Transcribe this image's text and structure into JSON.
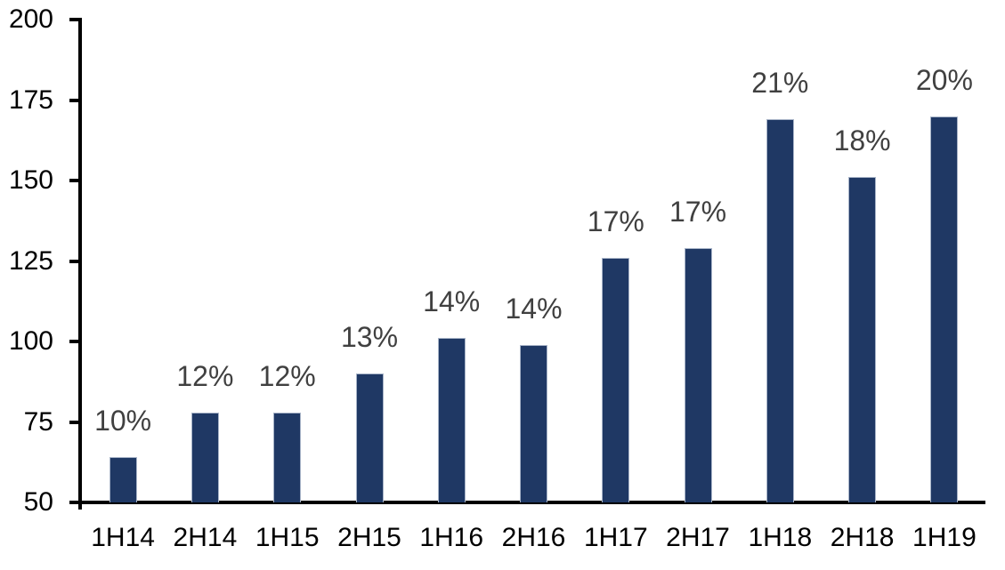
{
  "chart_data": {
    "type": "bar",
    "title": "",
    "xlabel": "",
    "ylabel": "",
    "categories": [
      "1H14",
      "2H14",
      "1H15",
      "2H15",
      "1H16",
      "2H16",
      "1H17",
      "2H17",
      "1H18",
      "2H18",
      "1H19"
    ],
    "values": [
      64,
      78,
      78,
      90,
      101,
      99,
      126,
      129,
      169,
      151,
      170
    ],
    "data_labels": [
      "10%",
      "12%",
      "12%",
      "13%",
      "14%",
      "14%",
      "17%",
      "17%",
      "21%",
      "18%",
      "20%"
    ],
    "yticks": [
      50,
      75,
      100,
      125,
      150,
      175,
      200
    ],
    "ylim": [
      50,
      200
    ],
    "grid": false,
    "legend": "none",
    "colors": {
      "bar_fill": "#1F3864",
      "bar_border": "#A8B4C8",
      "data_label": "#404040",
      "axis_text": "#000000",
      "axis_line": "#000000",
      "background": "#FFFFFF"
    }
  }
}
